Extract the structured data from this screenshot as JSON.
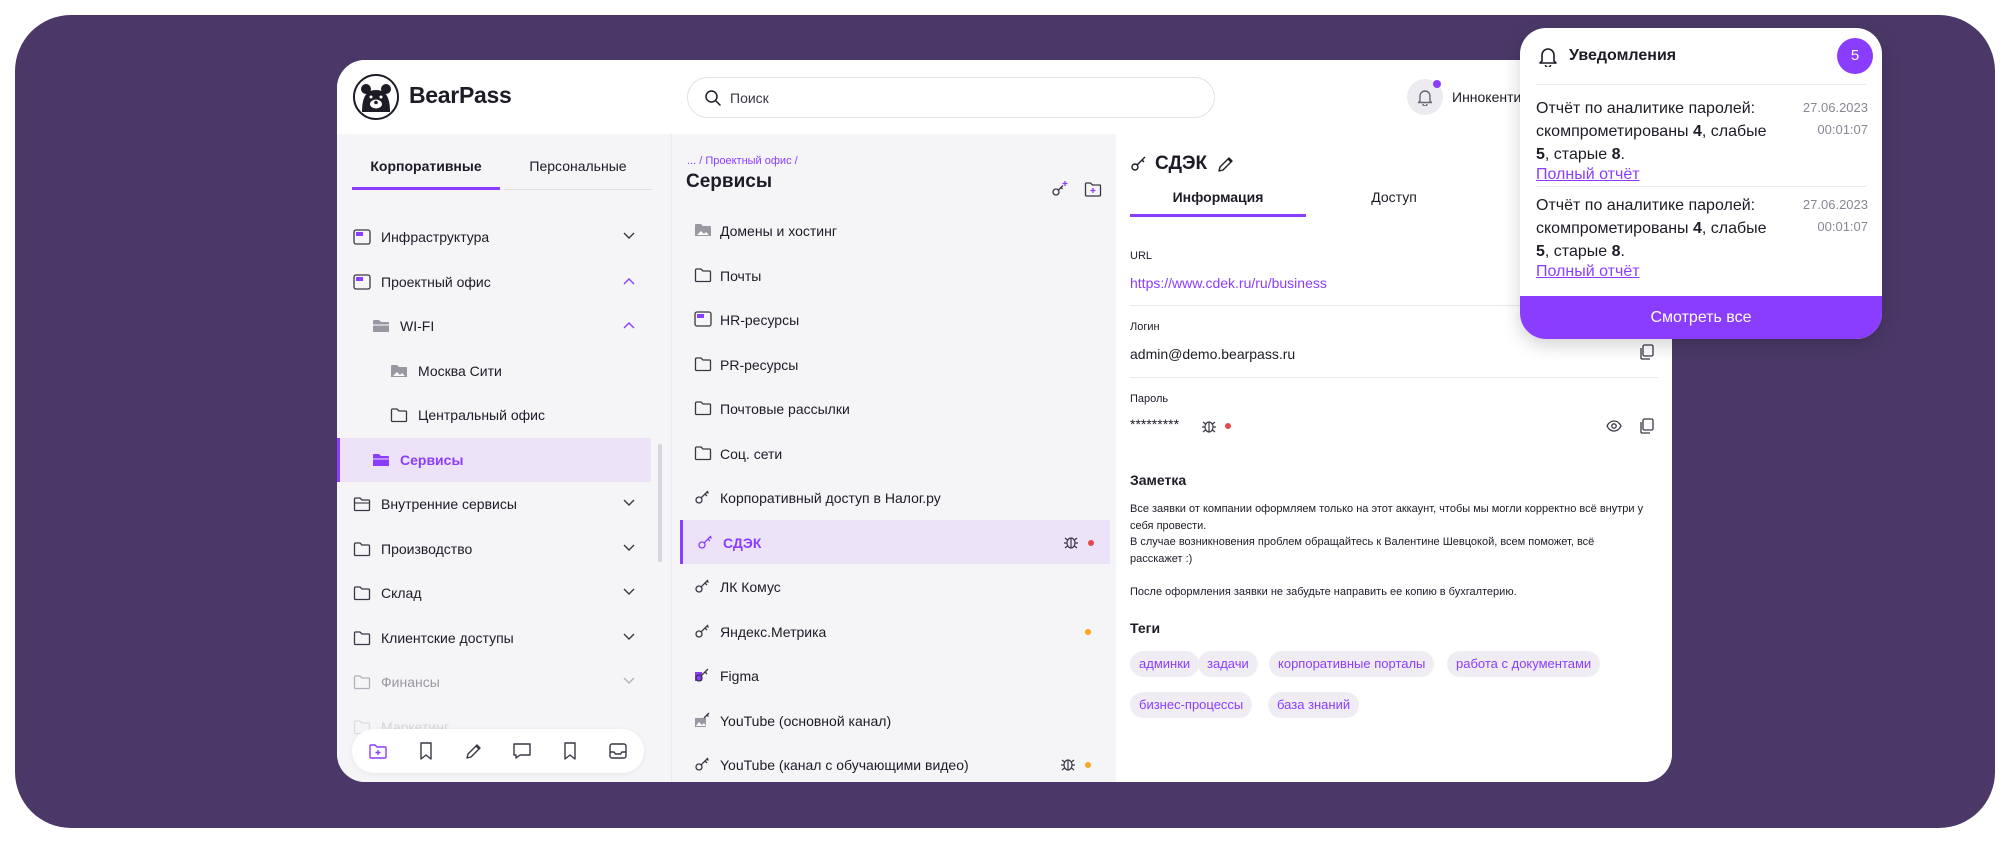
{
  "header": {
    "brand": "BearPass",
    "search_placeholder": "Поиск",
    "user_name": "Иннокенти"
  },
  "sidebar": {
    "tabs": [
      {
        "label": "Корпоративные",
        "active": true
      },
      {
        "label": "Персональные",
        "active": false
      }
    ],
    "items": [
      {
        "label": "Инфраструктура",
        "icon": "folder-colored-icon",
        "expanded": false
      },
      {
        "label": "Проектный офис",
        "icon": "folder-colored-icon",
        "expanded": true
      },
      {
        "label": "WI-FI",
        "icon": "folder-open-icon",
        "expanded": true
      },
      {
        "label": "Москва Сити",
        "icon": "folder-image-icon"
      },
      {
        "label": "Центральный офис",
        "icon": "folder-icon"
      },
      {
        "label": "Сервисы",
        "icon": "folder-open-icon",
        "active": true
      },
      {
        "label": "Внутренние сервисы",
        "icon": "folder-open-icon",
        "expanded": false
      },
      {
        "label": "Производство",
        "icon": "folder-icon",
        "expanded": false
      },
      {
        "label": "Склад",
        "icon": "folder-icon",
        "expanded": false
      },
      {
        "label": "Клиентские доступы",
        "icon": "folder-icon",
        "expanded": false
      },
      {
        "label": "Финансы",
        "icon": "folder-icon",
        "expanded": false
      },
      {
        "label": "Маркетинг",
        "icon": "folder-icon",
        "expanded": false
      }
    ],
    "toolbar": [
      "add-folder-icon",
      "bookmark-icon",
      "pencil-icon",
      "comment-icon",
      "bookmark-icon",
      "inbox-icon"
    ]
  },
  "list": {
    "breadcrumb": "... / Проектный офис /",
    "title": "Сервисы",
    "rows": [
      {
        "label": "Домены и хостинг",
        "icon": "folder-image-icon"
      },
      {
        "label": "Почты",
        "icon": "folder-icon"
      },
      {
        "label": "HR-ресурсы",
        "icon": "folder-colored-icon"
      },
      {
        "label": "PR-ресурсы",
        "icon": "folder-icon"
      },
      {
        "label": "Почтовые рассылки",
        "icon": "folder-icon"
      },
      {
        "label": "Соц. сети",
        "icon": "folder-icon"
      },
      {
        "label": "Корпоративный доступ в Налог.ру",
        "icon": "key-icon"
      },
      {
        "label": "СДЭК",
        "icon": "key-icon",
        "selected": true,
        "bug": true,
        "dot": "#e5484d"
      },
      {
        "label": "ЛК Комус",
        "icon": "key-icon"
      },
      {
        "label": "Яндекс.Метрика",
        "icon": "key-icon",
        "dot": "#f5a623"
      },
      {
        "label": "Figma",
        "icon": "key-colored-icon"
      },
      {
        "label": "YouTube (основной канал)",
        "icon": "key-image-icon"
      },
      {
        "label": "YouTube (канал с обучающими видео)",
        "icon": "key-icon",
        "bug": true,
        "dot": "#f5a623"
      }
    ]
  },
  "detail": {
    "title": "СДЭК",
    "tabs": [
      {
        "label": "Информация",
        "active": true
      },
      {
        "label": "Доступ",
        "active": false
      }
    ],
    "url_label": "URL",
    "url": "https://www.cdek.ru/ru/business",
    "login_label": "Логин",
    "login": "admin@demo.bearpass.ru",
    "password_label": "Пароль",
    "password": "*********",
    "note_title": "Заметка",
    "note_lines": [
      "Все заявки от компании оформляем только на этот аккаунт, чтобы мы могли корректно всё внутри у",
      "себя провести.",
      "В случае возникновения проблем обращайтесь к Валентине Шевцокой, всем поможет, всё",
      "расскажет :)",
      "",
      "После оформления заявки не забудьте направить ее копию  в бухгалтерию."
    ],
    "tags_title": "Теги",
    "tags": [
      "админки",
      "задачи",
      "корпоративные порталы",
      "работа с документами",
      "бизнес-процессы",
      "база знаний"
    ]
  },
  "notifications": {
    "title": "Уведомления",
    "count": "5",
    "items": [
      {
        "prefix": "Отчёт по аналитике паролей: скомпрометированы ",
        "compromised": "4",
        "weak_text": ", слабые ",
        "weak": "5",
        "old_text": ", старые ",
        "old": "8",
        "suffix": ".",
        "link": "Полный отчёт",
        "date": "27.06.2023",
        "time": "00:01:07"
      },
      {
        "prefix": "Отчёт по аналитике паролей: скомпрометированы ",
        "compromised": "4",
        "weak_text": ", слабые ",
        "weak": "5",
        "old_text": ", старые ",
        "old": "8",
        "suffix": ".",
        "link": "Полный отчёт",
        "date": "27.06.2023",
        "time": "00:01:07"
      }
    ],
    "view_all": "Смотреть все"
  },
  "colors": {
    "accent": "#8b3dff",
    "frame": "#4b3868",
    "panel": "#f5f4f7",
    "selected": "#ece3f8",
    "danger": "#e5484d",
    "warning": "#f5a623"
  }
}
